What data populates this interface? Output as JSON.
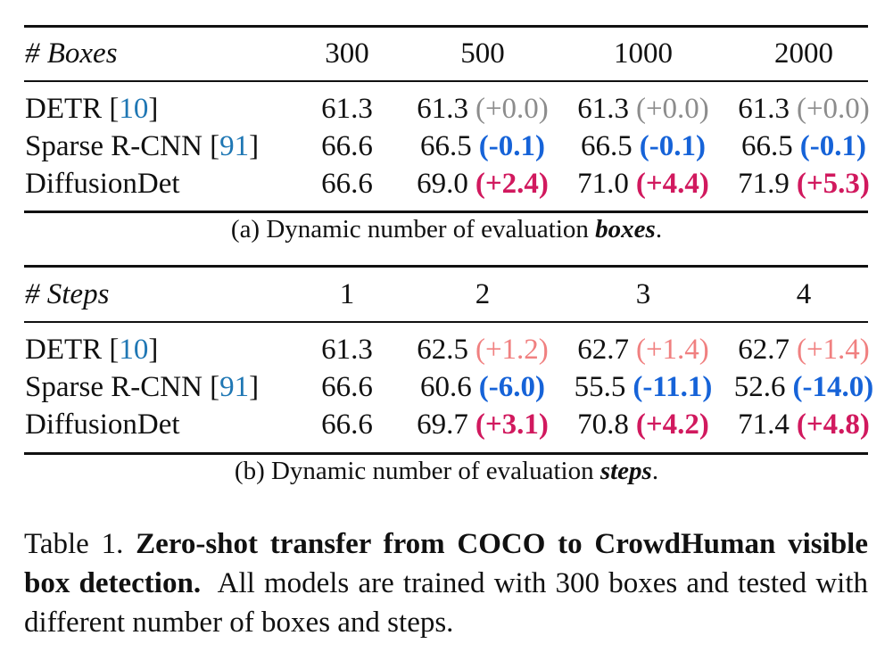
{
  "subtable_a": {
    "header": {
      "label": "# Boxes",
      "cols": [
        "300",
        "500",
        "1000",
        "2000"
      ]
    },
    "rows": [
      {
        "name": "DETR",
        "cite": "10",
        "values": [
          "61.3",
          "61.3",
          "61.3",
          "61.3"
        ],
        "deltas": [
          "",
          "(+0.0)",
          "(+0.0)",
          "(+0.0)"
        ]
      },
      {
        "name": "Sparse R-CNN",
        "cite": "91",
        "values": [
          "66.6",
          "66.5",
          "66.5",
          "66.5"
        ],
        "deltas": [
          "",
          "(-0.1)",
          "(-0.1)",
          "(-0.1)"
        ]
      },
      {
        "name": "DiffusionDet",
        "cite": "",
        "values": [
          "66.6",
          "69.0",
          "71.0",
          "71.9"
        ],
        "deltas": [
          "",
          "(+2.4)",
          "(+4.4)",
          "(+5.3)"
        ]
      }
    ],
    "caption_prefix": "(a) Dynamic number of evaluation ",
    "caption_emph": "boxes",
    "caption_suffix": "."
  },
  "subtable_b": {
    "header": {
      "label": "# Steps",
      "cols": [
        "1",
        "2",
        "3",
        "4"
      ]
    },
    "rows": [
      {
        "name": "DETR",
        "cite": "10",
        "values": [
          "61.3",
          "62.5",
          "62.7",
          "62.7"
        ],
        "deltas": [
          "",
          "(+1.2)",
          "(+1.4)",
          "(+1.4)"
        ]
      },
      {
        "name": "Sparse R-CNN",
        "cite": "91",
        "values": [
          "66.6",
          "60.6",
          "55.5",
          "52.6"
        ],
        "deltas": [
          "",
          "(-6.0)",
          "(-11.1)",
          "(-14.0)"
        ]
      },
      {
        "name": "DiffusionDet",
        "cite": "",
        "values": [
          "66.6",
          "69.7",
          "70.8",
          "71.4"
        ],
        "deltas": [
          "",
          "(+3.1)",
          "(+4.2)",
          "(+4.8)"
        ]
      }
    ],
    "caption_prefix": "(b) Dynamic number of evaluation ",
    "caption_emph": "steps",
    "caption_suffix": "."
  },
  "table_caption": {
    "label": "Table 1.",
    "title": "Zero-shot transfer from COCO to CrowdHuman visible box detection.",
    "body": "All models are trained with 300 boxes and tested with different number of boxes and steps."
  },
  "colors": {
    "neutral": "#8c8c8c",
    "blue": "#1663d8",
    "pink": "#d1195e",
    "salmon": "#f08080",
    "cite": "#1f77b4"
  }
}
